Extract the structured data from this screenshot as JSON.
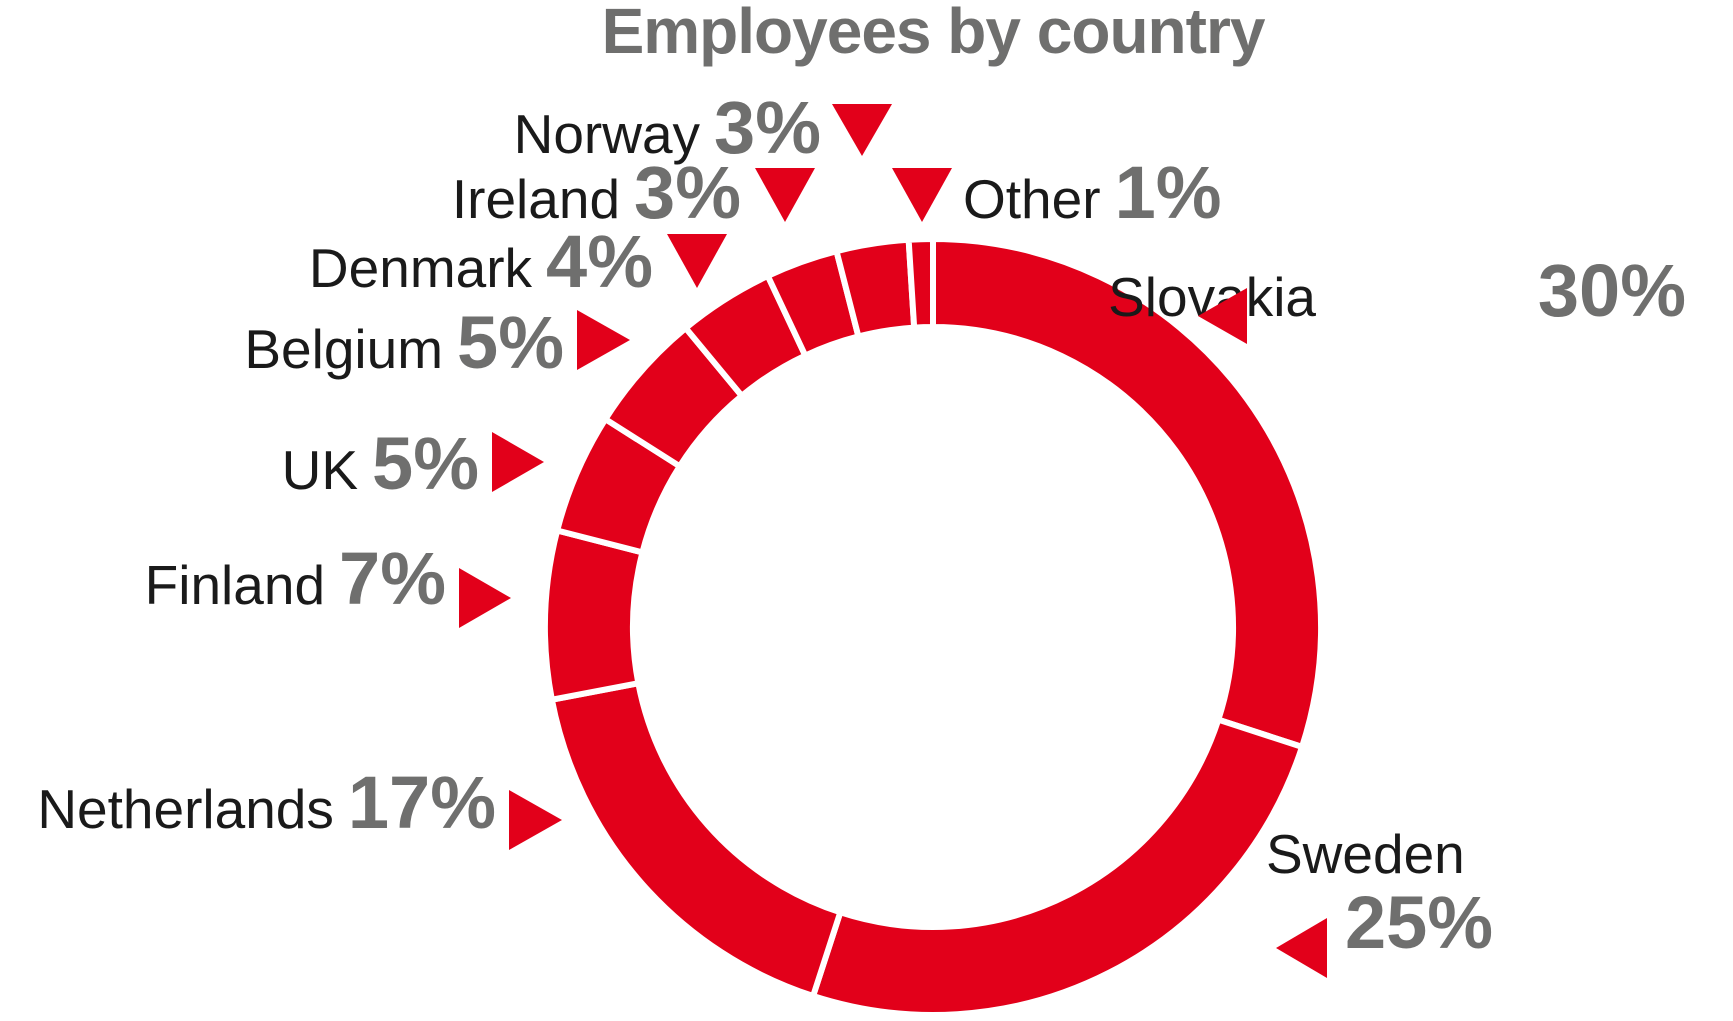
{
  "chart_data": {
    "type": "pie",
    "title": "Employees by country",
    "categories": [
      "Slovakia",
      "Sweden",
      "Netherlands",
      "Finland",
      "UK",
      "Belgium",
      "Denmark",
      "Ireland",
      "Norway",
      "Other"
    ],
    "values": [
      30,
      25,
      17,
      7,
      5,
      5,
      4,
      3,
      3,
      1
    ],
    "value_labels": [
      "30%",
      "25%",
      "17%",
      "7%",
      "5%",
      "5%",
      "4%",
      "3%",
      "3%",
      "1%"
    ],
    "color": "#e2001a",
    "label_color": "#6f6f6e",
    "style": "donut"
  }
}
